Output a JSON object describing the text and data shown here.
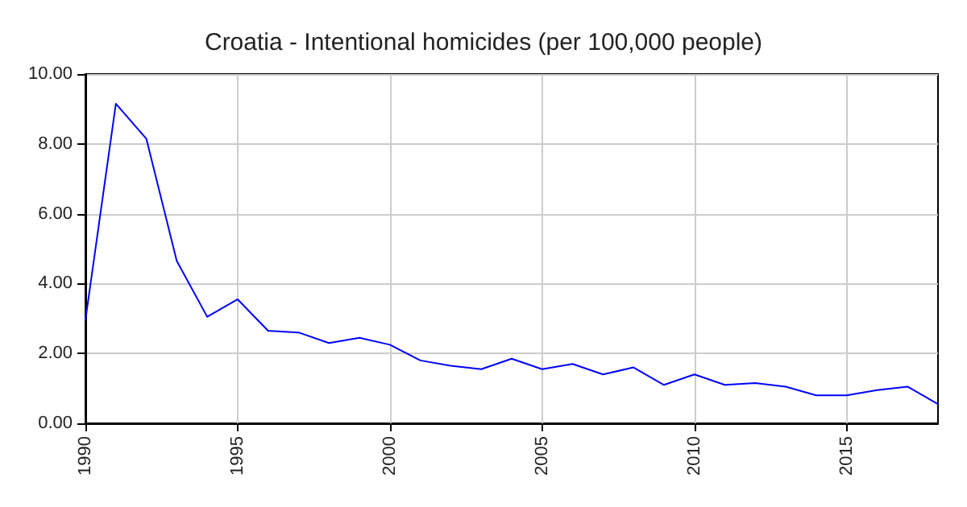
{
  "chart_data": {
    "type": "line",
    "title": "Croatia - Intentional homicides (per 100,000 people)",
    "x": [
      1990,
      1991,
      1992,
      1993,
      1994,
      1995,
      1996,
      1997,
      1998,
      1999,
      2000,
      2001,
      2002,
      2003,
      2004,
      2005,
      2006,
      2007,
      2008,
      2009,
      2010,
      2011,
      2012,
      2013,
      2014,
      2015,
      2016,
      2017,
      2018
    ],
    "series": [
      {
        "color": "#0000ff",
        "values": [
          2.95,
          9.15,
          8.15,
          4.65,
          3.05,
          3.55,
          2.65,
          2.6,
          2.3,
          2.45,
          2.25,
          1.8,
          1.65,
          1.55,
          1.85,
          1.55,
          1.7,
          1.4,
          1.6,
          1.1,
          1.4,
          1.1,
          1.15,
          1.05,
          0.8,
          0.8,
          0.95,
          1.05,
          0.55
        ]
      }
    ],
    "xlim": [
      1990,
      2018
    ],
    "xticks": [
      1990,
      1995,
      2000,
      2005,
      2010,
      2015
    ],
    "ylim": [
      0,
      10
    ],
    "yticks": [
      {
        "value": 0,
        "label": "0.00"
      },
      {
        "value": 2,
        "label": "2.00"
      },
      {
        "value": 4,
        "label": "4.00"
      },
      {
        "value": 6,
        "label": "6.00"
      },
      {
        "value": 8,
        "label": "8.00"
      },
      {
        "value": 10,
        "label": "10.00"
      }
    ],
    "grid": true,
    "marker": "none",
    "line_style": "solid"
  }
}
